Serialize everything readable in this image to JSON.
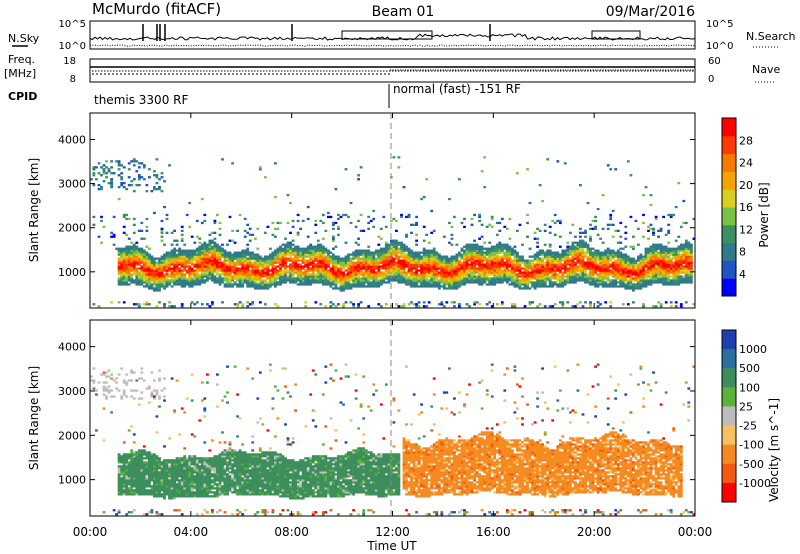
{
  "header": {
    "station": "McMurdo (fitACF)",
    "beam": "Beam 01",
    "date": "09/Mar/2016"
  },
  "status_panel": {
    "left_labels": {
      "nsky": "N.Sky",
      "freq_top": "Freq.",
      "freq_unit": "[MHz]",
      "cpid": "CPID"
    },
    "right_labels": {
      "nsearch": "N.Search",
      "nave": "Nave"
    },
    "noise_ticks": [
      "10^5",
      "10^0"
    ],
    "noise_ticks_right": [
      "10^5",
      "10^0"
    ],
    "freq_ticks": [
      "18",
      "8"
    ],
    "nave_ticks": [
      "60",
      "0"
    ],
    "cpid_segments": [
      {
        "label": "themis 3300 RF",
        "start_hour": 0,
        "end_hour": 11.95
      },
      {
        "label": "normal (fast) -151 RF",
        "start_hour": 11.95,
        "end_hour": 24
      }
    ]
  },
  "chart_data": [
    {
      "type": "heatmap",
      "title": "",
      "xlabel": "Time UT",
      "ylabel": "Slant Range [km]",
      "x_range_hours": [
        0,
        24
      ],
      "x_ticks": [
        "00:00",
        "04:00",
        "08:00",
        "12:00",
        "16:00",
        "20:00",
        "00:00"
      ],
      "ylim": [
        180,
        4600
      ],
      "y_ticks": [
        1000,
        2000,
        3000,
        4000
      ],
      "colorbar": {
        "label": "Power [dB]",
        "ticks": [
          4,
          8,
          12,
          16,
          20,
          24,
          28
        ],
        "range": [
          0,
          32
        ],
        "colors": [
          "#0000ff",
          "#1f55c0",
          "#2f7a8a",
          "#3b8f62",
          "#7cc245",
          "#d8cf20",
          "#f5a300",
          "#f47a00",
          "#ff3a00",
          "#ff0000"
        ]
      },
      "features": [
        {
          "name": "main echo band",
          "start_hour": 1,
          "end_hour": 23.9,
          "lower_km": 650,
          "upper_km": 1500,
          "peak_power_db": 29
        },
        {
          "name": "high range patches",
          "start_hour": 0,
          "end_hour": 3,
          "lower_km": 2800,
          "upper_km": 3500,
          "peak_power_db": 10
        }
      ]
    },
    {
      "type": "heatmap",
      "title": "",
      "xlabel": "Time UT",
      "ylabel": "Slant Range [km]",
      "x_range_hours": [
        0,
        24
      ],
      "x_ticks": [
        "00:00",
        "04:00",
        "08:00",
        "12:00",
        "16:00",
        "20:00",
        "00:00"
      ],
      "ylim": [
        180,
        4600
      ],
      "y_ticks": [
        1000,
        2000,
        3000,
        4000
      ],
      "colorbar": {
        "label": "Velocity [m s^-1]",
        "ticks": [
          1000,
          500,
          100,
          25,
          -25,
          -100,
          -500,
          -1000
        ],
        "colors": [
          "#1f3fb0",
          "#2a6fa0",
          "#3c8e5c",
          "#5ab23a",
          "#bdbdbd",
          "#f7c060",
          "#f58a20",
          "#f35a10",
          "#ff0000"
        ]
      },
      "features": [
        {
          "name": "positive velocity band",
          "start_hour": 1,
          "end_hour": 12.3,
          "lower_km": 600,
          "upper_km": 1550,
          "velocity_class": "100 to 500"
        },
        {
          "name": "negative velocity band",
          "start_hour": 12.3,
          "end_hour": 23.5,
          "lower_km": 650,
          "upper_km": 1900,
          "velocity_class": "-100 to -500"
        }
      ]
    }
  ]
}
